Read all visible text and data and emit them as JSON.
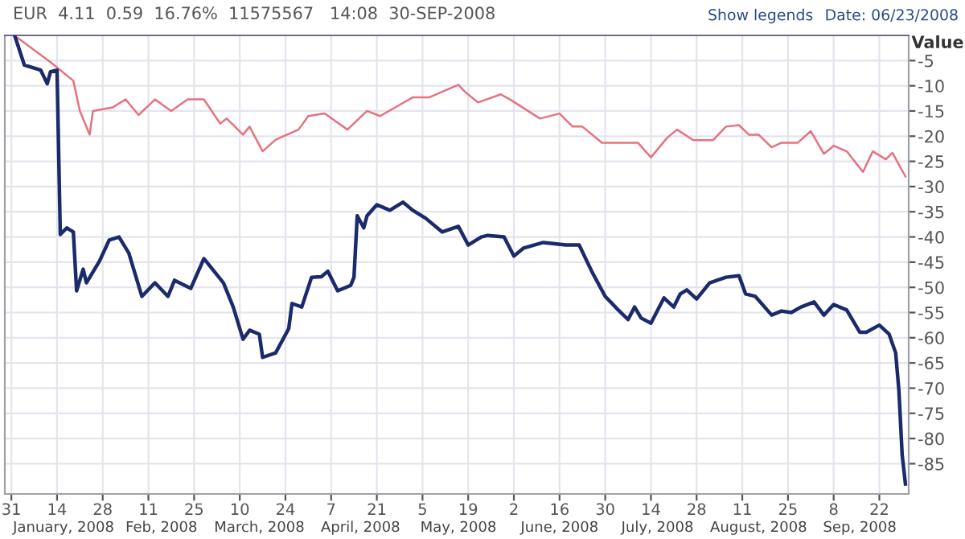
{
  "chart_data": {
    "type": "line",
    "title": "EUR  4.11  0.59  16.76%  11575567   14:08  30-SEP-2008",
    "annotations": [
      "Show legends",
      "Date: 06/23/2008"
    ],
    "ylabel": "Value",
    "series": [
      {
        "color": "#1b2a6b",
        "x": [
          "2008-01-01",
          "2008-01-04",
          "2008-01-09",
          "2008-01-11",
          "2008-01-12",
          "2008-01-14",
          "2008-01-15",
          "2008-01-17",
          "2008-01-19",
          "2008-01-20",
          "2008-01-22",
          "2008-01-23",
          "2008-01-27",
          "2008-01-30",
          "2008-02-02",
          "2008-02-05",
          "2008-02-09",
          "2008-02-13",
          "2008-02-17",
          "2008-02-19",
          "2008-02-24",
          "2008-02-28",
          "2008-03-05",
          "2008-03-08",
          "2008-03-11",
          "2008-03-13",
          "2008-03-16",
          "2008-03-17",
          "2008-03-21",
          "2008-03-25",
          "2008-03-26",
          "2008-03-29",
          "2008-04-01",
          "2008-04-04",
          "2008-04-06",
          "2008-04-09",
          "2008-04-13",
          "2008-04-14",
          "2008-04-15",
          "2008-04-17",
          "2008-04-18",
          "2008-04-21",
          "2008-04-25",
          "2008-04-29",
          "2008-05-02",
          "2008-05-06",
          "2008-05-11",
          "2008-05-16",
          "2008-05-19",
          "2008-05-23",
          "2008-05-25",
          "2008-05-30",
          "2008-06-02",
          "2008-06-05",
          "2008-06-11",
          "2008-06-18",
          "2008-06-22",
          "2008-06-26",
          "2008-06-30",
          "2008-07-04",
          "2008-07-07",
          "2008-07-09",
          "2008-07-11",
          "2008-07-14",
          "2008-07-18",
          "2008-07-21",
          "2008-07-23",
          "2008-07-25",
          "2008-07-28",
          "2008-08-01",
          "2008-08-06",
          "2008-08-10",
          "2008-08-12",
          "2008-08-15",
          "2008-08-20",
          "2008-08-23",
          "2008-08-26",
          "2008-08-29",
          "2008-09-02",
          "2008-09-05",
          "2008-09-08",
          "2008-09-12",
          "2008-09-16",
          "2008-09-18",
          "2008-09-22",
          "2008-09-25",
          "2008-09-27",
          "2008-09-28",
          "2008-09-29",
          "2008-09-30"
        ],
        "values": [
          0,
          -5.9,
          -6.9,
          -9.6,
          -7.2,
          -6.9,
          -39.5,
          -38.2,
          -39,
          -50.7,
          -46.4,
          -49.1,
          -44.8,
          -40.6,
          -40,
          -43.2,
          -51.8,
          -49.1,
          -51.8,
          -48.6,
          -50.2,
          -44.3,
          -49.1,
          -53.9,
          -60.3,
          -58.5,
          -59.3,
          -63.9,
          -63,
          -58.2,
          -53.2,
          -53.9,
          -48,
          -47.9,
          -46.8,
          -50.7,
          -49.6,
          -48,
          -35.8,
          -38.2,
          -35.8,
          -33.6,
          -34.7,
          -33.1,
          -34.7,
          -36.3,
          -39,
          -37.9,
          -41.6,
          -40,
          -39.7,
          -40,
          -43.8,
          -42.2,
          -41.1,
          -41.6,
          -41.6,
          -47,
          -51.8,
          -54.5,
          -56.4,
          -53.9,
          -56.1,
          -57.1,
          -52.1,
          -53.9,
          -51.3,
          -50.5,
          -52.3,
          -49.1,
          -48,
          -47.7,
          -51.3,
          -51.8,
          -55.5,
          -54.7,
          -55,
          -53.9,
          -52.9,
          -55.5,
          -53.4,
          -54.5,
          -58.9,
          -58.9,
          -57.5,
          -59.3,
          -63,
          -70.5,
          -83.3,
          -89
        ]
      },
      {
        "color": "#e5727f",
        "x": [
          "2008-01-02",
          "2008-01-12",
          "2008-01-19",
          "2008-01-21",
          "2008-01-24",
          "2008-01-25",
          "2008-01-31",
          "2008-02-04",
          "2008-02-08",
          "2008-02-13",
          "2008-02-18",
          "2008-02-23",
          "2008-02-28",
          "2008-03-04",
          "2008-03-06",
          "2008-03-11",
          "2008-03-13",
          "2008-03-17",
          "2008-03-21",
          "2008-03-28",
          "2008-03-31",
          "2008-04-05",
          "2008-04-12",
          "2008-04-18",
          "2008-04-22",
          "2008-05-02",
          "2008-05-07",
          "2008-05-16",
          "2008-05-18",
          "2008-05-22",
          "2008-05-29",
          "2008-06-01",
          "2008-06-10",
          "2008-06-16",
          "2008-06-20",
          "2008-06-23",
          "2008-06-29",
          "2008-07-05",
          "2008-07-10",
          "2008-07-14",
          "2008-07-19",
          "2008-07-22",
          "2008-07-27",
          "2008-08-02",
          "2008-08-06",
          "2008-08-10",
          "2008-08-13",
          "2008-08-16",
          "2008-08-20",
          "2008-08-23",
          "2008-08-28",
          "2008-09-01",
          "2008-09-05",
          "2008-09-08",
          "2008-09-12",
          "2008-09-17",
          "2008-09-20",
          "2008-09-24",
          "2008-09-26",
          "2008-09-30"
        ],
        "values": [
          -0.5,
          -5.3,
          -9,
          -15,
          -19.7,
          -15,
          -14.3,
          -12.7,
          -15.8,
          -12.7,
          -15,
          -12.7,
          -12.7,
          -17.5,
          -16.5,
          -19.7,
          -18.1,
          -23,
          -20.7,
          -18.7,
          -16,
          -15.5,
          -18.7,
          -15,
          -16,
          -12.3,
          -12.3,
          -9.8,
          -11.2,
          -13.3,
          -11.7,
          -12.8,
          -16.5,
          -15.5,
          -18.1,
          -18.1,
          -21.3,
          -21.3,
          -21.3,
          -24.2,
          -20.3,
          -18.7,
          -20.8,
          -20.8,
          -18.1,
          -17.8,
          -19.7,
          -19.7,
          -22.2,
          -21.3,
          -21.3,
          -19,
          -23.5,
          -21.9,
          -23,
          -27.1,
          -23,
          -24.6,
          -23.3,
          -28
        ]
      }
    ],
    "xlim": [
      "2007-12-29",
      "2008-10-01"
    ],
    "xticks": [
      {
        "value": "2007-12-31",
        "label": "31"
      },
      {
        "value": "2008-01-14",
        "label": "14"
      },
      {
        "value": "2008-01-28",
        "label": "28"
      },
      {
        "value": "2008-02-11",
        "label": "11"
      },
      {
        "value": "2008-02-25",
        "label": "25"
      },
      {
        "value": "2008-03-10",
        "label": "10"
      },
      {
        "value": "2008-03-24",
        "label": "24"
      },
      {
        "value": "2008-04-07",
        "label": "7"
      },
      {
        "value": "2008-04-21",
        "label": "21"
      },
      {
        "value": "2008-05-05",
        "label": "5"
      },
      {
        "value": "2008-05-19",
        "label": "19"
      },
      {
        "value": "2008-06-02",
        "label": "2"
      },
      {
        "value": "2008-06-16",
        "label": "16"
      },
      {
        "value": "2008-06-30",
        "label": "30"
      },
      {
        "value": "2008-07-14",
        "label": "14"
      },
      {
        "value": "2008-07-28",
        "label": "28"
      },
      {
        "value": "2008-08-11",
        "label": "11"
      },
      {
        "value": "2008-08-25",
        "label": "25"
      },
      {
        "value": "2008-09-08",
        "label": "8"
      },
      {
        "value": "2008-09-22",
        "label": "22"
      }
    ],
    "x2lim": [
      "2007-12-29",
      "2008-10-01"
    ],
    "x2ticks": [
      {
        "value": "2008-01-16",
        "label": "January, 2008"
      },
      {
        "value": "2008-02-15",
        "label": "Feb, 2008"
      },
      {
        "value": "2008-03-16",
        "label": "March, 2008"
      },
      {
        "value": "2008-04-16",
        "label": "April, 2008"
      },
      {
        "value": "2008-05-16",
        "label": "May, 2008"
      },
      {
        "value": "2008-06-16",
        "label": "June, 2008"
      },
      {
        "value": "2008-07-16",
        "label": "July, 2008"
      },
      {
        "value": "2008-08-16",
        "label": "August, 2008"
      },
      {
        "value": "2008-09-16",
        "label": "Sep, 2008"
      }
    ],
    "ylim": [
      -91,
      0
    ],
    "yticks": [
      -5,
      -10,
      -15,
      -20,
      -25,
      -30,
      -35,
      -40,
      -45,
      -50,
      -55,
      -60,
      -65,
      -70,
      -75,
      -80,
      -85
    ],
    "grid": true,
    "marker": "none",
    "line_style": "solid"
  }
}
